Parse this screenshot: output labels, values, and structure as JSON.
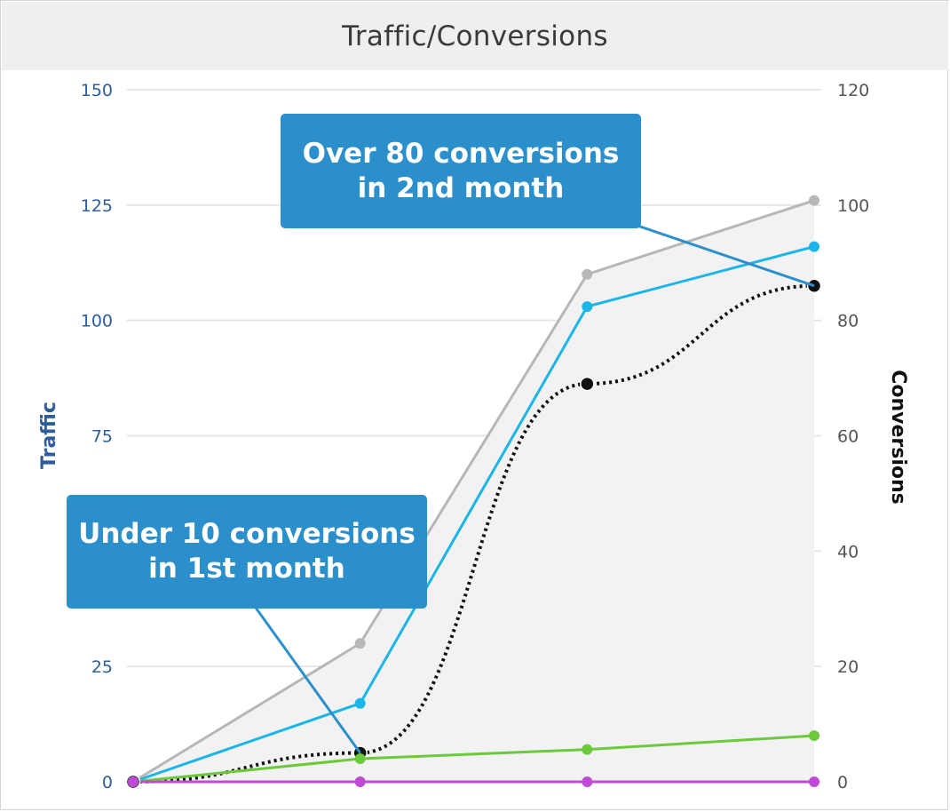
{
  "header": {
    "title": "Traffic/Conversions"
  },
  "chart_data": {
    "type": "line",
    "title": "Traffic/Conversions",
    "x": [
      0,
      1,
      2,
      3
    ],
    "left_axis": {
      "label": "Traffic",
      "ylim": [
        0,
        150
      ],
      "ticks": [
        0,
        25,
        50,
        75,
        100,
        125,
        150
      ],
      "color": "#2f5d9c"
    },
    "right_axis": {
      "label": "Conversions",
      "ylim": [
        0,
        120
      ],
      "ticks": [
        0,
        20,
        40,
        60,
        80,
        100,
        120
      ],
      "color": "#111111"
    },
    "series": [
      {
        "axis": "left",
        "color": "#b7b7b7",
        "values": [
          0,
          30,
          110,
          126
        ],
        "area": true,
        "style": "solid"
      },
      {
        "axis": "left",
        "color": "#1bb5e8",
        "values": [
          0,
          17,
          103,
          116
        ],
        "area": false,
        "style": "solid"
      },
      {
        "axis": "right",
        "color": "#111111",
        "values": [
          0,
          5,
          69,
          86
        ],
        "area": false,
        "style": "dotted-smooth"
      },
      {
        "axis": "left",
        "color": "#6cc93c",
        "values": [
          0,
          5,
          7,
          10
        ],
        "area": false,
        "style": "solid"
      },
      {
        "axis": "left",
        "color": "#c04ad6",
        "values": [
          0,
          0,
          0,
          0
        ],
        "area": false,
        "style": "solid"
      }
    ],
    "grid": true,
    "annotations": [
      {
        "text": "Under 10 conversions\nin 1st month",
        "point_index": 1,
        "series_index": 2
      },
      {
        "text": "Over 80 conversions\nin 2nd month",
        "point_index": 3,
        "series_index": 2
      }
    ]
  },
  "callouts": {
    "first": "Under 10 conversions\nin 1st month",
    "second": "Over 80 conversions\nin 2nd month"
  }
}
